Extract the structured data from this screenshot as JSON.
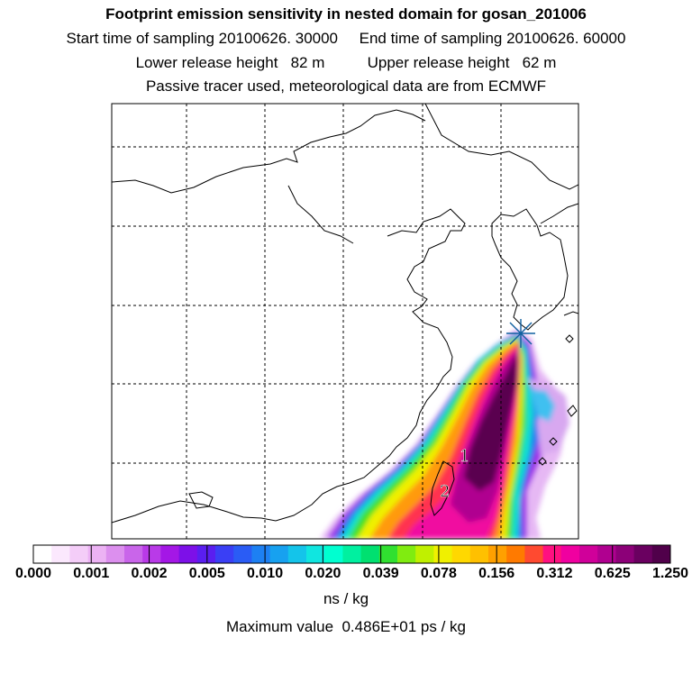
{
  "header": {
    "title": "Footprint emission sensitivity in nested domain for gosan_201006",
    "line2": "Start time of sampling 20100626. 30000     End time of sampling 20100626. 60000",
    "line3": "Lower release height   82 m          Upper release height   62 m",
    "line4": "Passive tracer used, meteorological data are from ECMWF"
  },
  "map": {
    "receptor_marker": "receptor-star",
    "region_labels": [
      "1",
      "2"
    ]
  },
  "colorbar": {
    "colors": [
      "#ffffff",
      "#fbe8fd",
      "#f4cdf8",
      "#ecb2f4",
      "#dc8fee",
      "#c965ea",
      "#b93ae8",
      "#a417e6",
      "#7d10e8",
      "#5a1ef0",
      "#3a3ff5",
      "#2a5cf5",
      "#1d80f3",
      "#17a1f0",
      "#14c4ea",
      "#10e6e0",
      "#00ffd0",
      "#00f0a0",
      "#00e070",
      "#30e030",
      "#80ec10",
      "#c0f000",
      "#f0f000",
      "#ffd800",
      "#ffc000",
      "#ffa000",
      "#ff7a00",
      "#ff4a30",
      "#ff1080",
      "#f000a0",
      "#d0009a",
      "#b00090",
      "#8c0078",
      "#6a0060",
      "#50004a"
    ],
    "tick_labels": [
      "0.000",
      "0.001",
      "0.002",
      "0.005",
      "0.010",
      "0.020",
      "0.039",
      "0.078",
      "0.156",
      "0.312",
      "0.625",
      "1.250"
    ],
    "units": "ns / kg"
  },
  "footer": {
    "max_value": "Maximum value  0.486E+01 ps / kg"
  }
}
